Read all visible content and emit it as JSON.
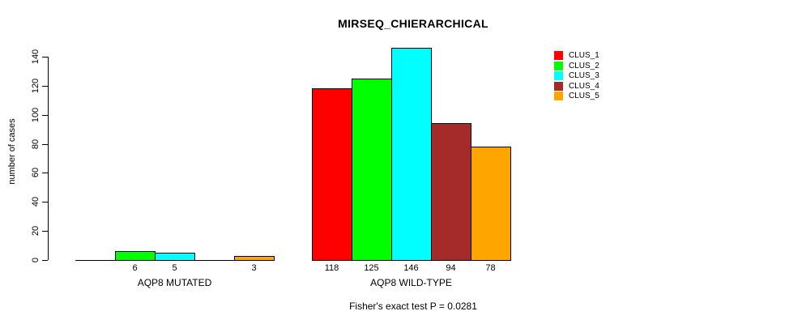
{
  "title": "MIRSEQ_CHIERARCHICAL",
  "footer": "Fisher's exact test P = 0.0281",
  "chart_data": {
    "type": "bar",
    "title": "MIRSEQ_CHIERARCHICAL",
    "xlabel": "",
    "ylabel": "number of cases",
    "ylim": [
      0,
      140
    ],
    "yticks": [
      0,
      20,
      40,
      60,
      80,
      100,
      120,
      140
    ],
    "grid": false,
    "legend_position": "top-right",
    "categories": [
      "AQP8 MUTATED",
      "AQP8 WILD-TYPE"
    ],
    "series": [
      {
        "name": "CLUS_1",
        "color": "#FF0000",
        "values": [
          0,
          118
        ]
      },
      {
        "name": "CLUS_2",
        "color": "#00FF00",
        "values": [
          6,
          125
        ]
      },
      {
        "name": "CLUS_3",
        "color": "#00FFFF",
        "values": [
          5,
          146
        ]
      },
      {
        "name": "CLUS_4",
        "color": "#A52A2A",
        "values": [
          0,
          94
        ]
      },
      {
        "name": "CLUS_5",
        "color": "#FFA500",
        "values": [
          3,
          78
        ]
      }
    ],
    "value_labels": "shown above axis for values greater than 0",
    "annotation": "Fisher's exact test P = 0.0281"
  }
}
